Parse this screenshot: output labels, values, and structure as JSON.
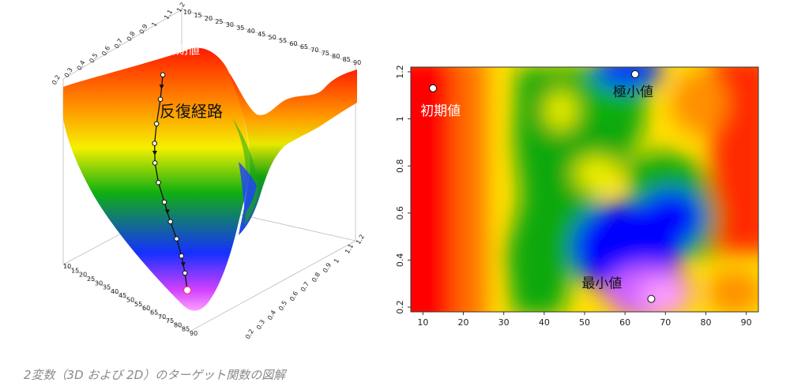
{
  "caption": "2変数（3D および 2D）のターゲット関数の図解",
  "chart_data": [
    {
      "type": "surface",
      "view": "3d",
      "x_ticks": [
        "10",
        "15",
        "20",
        "25",
        "30",
        "35",
        "40",
        "45",
        "50",
        "55",
        "60",
        "65",
        "70",
        "75",
        "80",
        "85",
        "90"
      ],
      "y_ticks": [
        "0.2",
        "0.3",
        "0.4",
        "0.5",
        "0.6",
        "0.7",
        "0.8",
        "0.9",
        "1",
        "1.1",
        "1.2"
      ],
      "annotations": [
        {
          "id": "start",
          "text": "初期値"
        },
        {
          "id": "path",
          "text": "反復経路"
        }
      ],
      "path_points": [
        {
          "x": 12,
          "y": 1.12
        },
        {
          "x": 14,
          "y": 1.02
        },
        {
          "x": 15,
          "y": 0.92
        },
        {
          "x": 16,
          "y": 0.84
        },
        {
          "x": 18,
          "y": 0.76
        },
        {
          "x": 22,
          "y": 0.68
        },
        {
          "x": 28,
          "y": 0.6
        },
        {
          "x": 34,
          "y": 0.52
        },
        {
          "x": 42,
          "y": 0.45
        },
        {
          "x": 50,
          "y": 0.38
        },
        {
          "x": 58,
          "y": 0.31
        },
        {
          "x": 66,
          "y": 0.24
        }
      ],
      "colors": [
        "#ff0000",
        "#ff8000",
        "#ffff00",
        "#00b000",
        "#0000ff",
        "#ff80ff"
      ]
    },
    {
      "type": "heatmap",
      "view": "2d",
      "x_ticks": [
        10,
        20,
        30,
        40,
        50,
        60,
        70,
        80,
        90
      ],
      "y_ticks": [
        0.2,
        0.4,
        0.6,
        0.8,
        1,
        1.2
      ],
      "xlim": [
        7,
        93
      ],
      "ylim": [
        0.18,
        1.22
      ],
      "points": [
        {
          "text": "初期値",
          "x": 12.5,
          "y": 1.13
        },
        {
          "text": "極小値",
          "x": 62.5,
          "y": 1.19
        },
        {
          "text": "最小値",
          "x": 66.5,
          "y": 0.235
        }
      ],
      "colors": [
        "#ff0000",
        "#ff8000",
        "#ffff00",
        "#00b000",
        "#0000ff",
        "#ff80ff"
      ]
    }
  ]
}
